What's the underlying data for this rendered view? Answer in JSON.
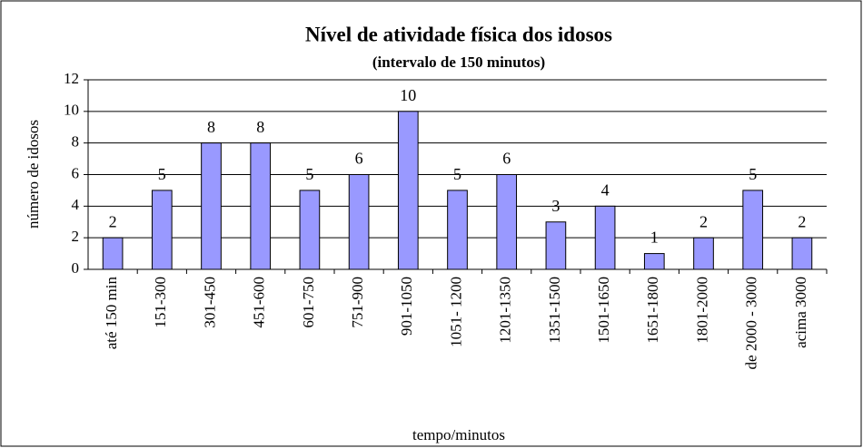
{
  "chart_data": {
    "type": "bar",
    "title": "Nível de atividade física dos idosos",
    "subtitle": "(intervalo de 150 minutos)",
    "x_label": "tempo/minutos",
    "y_label": "número de idosos",
    "categories": [
      "até 150 min",
      "151-300",
      "301-450",
      "451-600",
      "601-750",
      "751-900",
      "901-1050",
      "1051- 1200",
      "1201-1350",
      "1351-1500",
      "1501-1650",
      "1651-1800",
      "1801-2000",
      "de 2000 - 3000",
      "acima 3000"
    ],
    "values": [
      2,
      5,
      8,
      8,
      5,
      6,
      10,
      5,
      6,
      3,
      4,
      1,
      2,
      5,
      2
    ],
    "color": "#9999ff",
    "ylim": [
      0,
      12
    ],
    "yticks": [
      0,
      2,
      4,
      6,
      8,
      10,
      12
    ],
    "grid": true
  }
}
